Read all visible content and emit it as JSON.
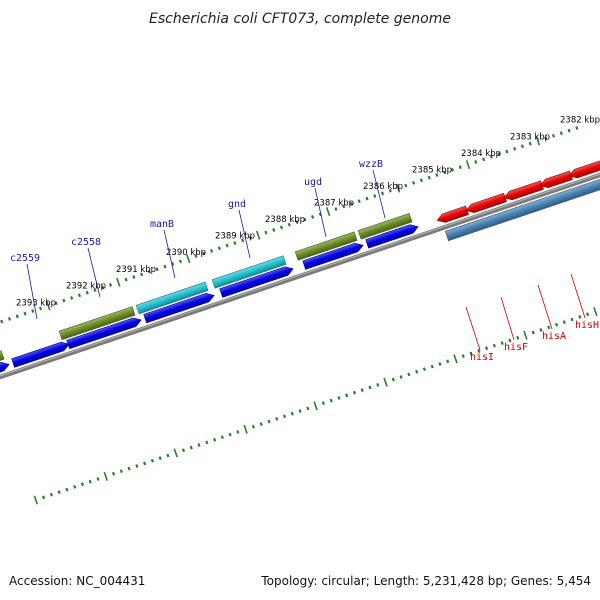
{
  "title": "Escherichia coli CFT073, complete genome",
  "footer": {
    "accession": "Accession: NC_004431",
    "topology": "Topology: circular; Length: 5,231,428 bp; Genes: 5,454"
  },
  "colors": {
    "backbone": "#7a7a7a",
    "tick": "#2e7d2e",
    "cds_forward": "#0000e6",
    "cds_reverse": "#e60000",
    "feature_olive": "#6b8e23",
    "feature_cyan": "#22c1cf",
    "feature_steel": "#4682b4",
    "label_forward": "#1a1aa6",
    "label_reverse": "#cc0000"
  },
  "ruler": {
    "labels": [
      "2382 kbp",
      "2383 kbp",
      "2384 kbp",
      "2385 kbp",
      "2386 kbp",
      "2387 kbp",
      "2388 kbp",
      "2389 kbp",
      "2390 kbp",
      "2391 kbp",
      "2392 kbp",
      "2393 kbp"
    ]
  },
  "genes_forward": [
    "c2559",
    "c2558",
    "manB",
    "gnd",
    "ugd",
    "wzzB"
  ],
  "genes_reverse": [
    "hisI",
    "hisF",
    "hisA",
    "hisH"
  ]
}
